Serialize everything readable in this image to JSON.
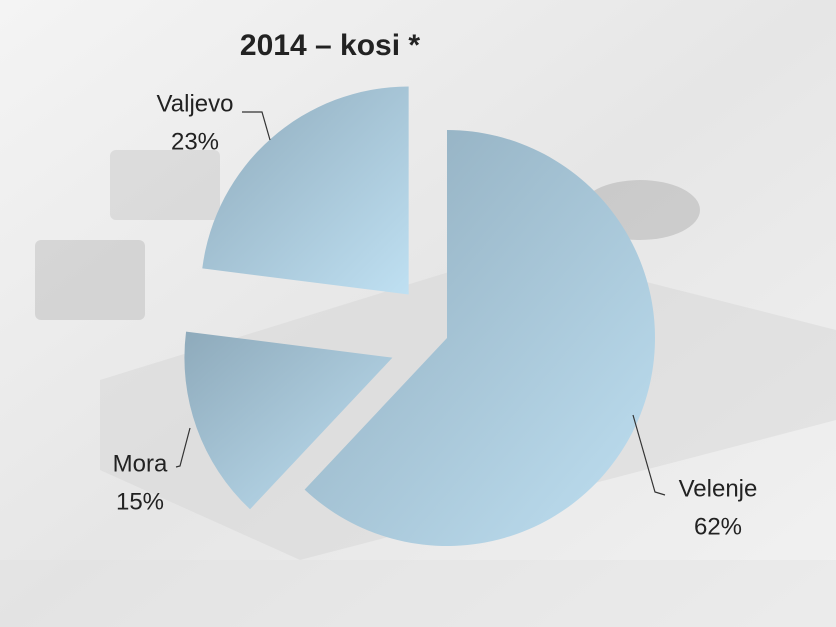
{
  "chart_data": {
    "type": "pie",
    "title": "2014 – kosi *",
    "categories": [
      "Velenje",
      "Mora",
      "Valjevo"
    ],
    "values": [
      62,
      15,
      23
    ],
    "value_labels": [
      "62%",
      "15%",
      "23%"
    ],
    "color": "#a8c8dc"
  }
}
